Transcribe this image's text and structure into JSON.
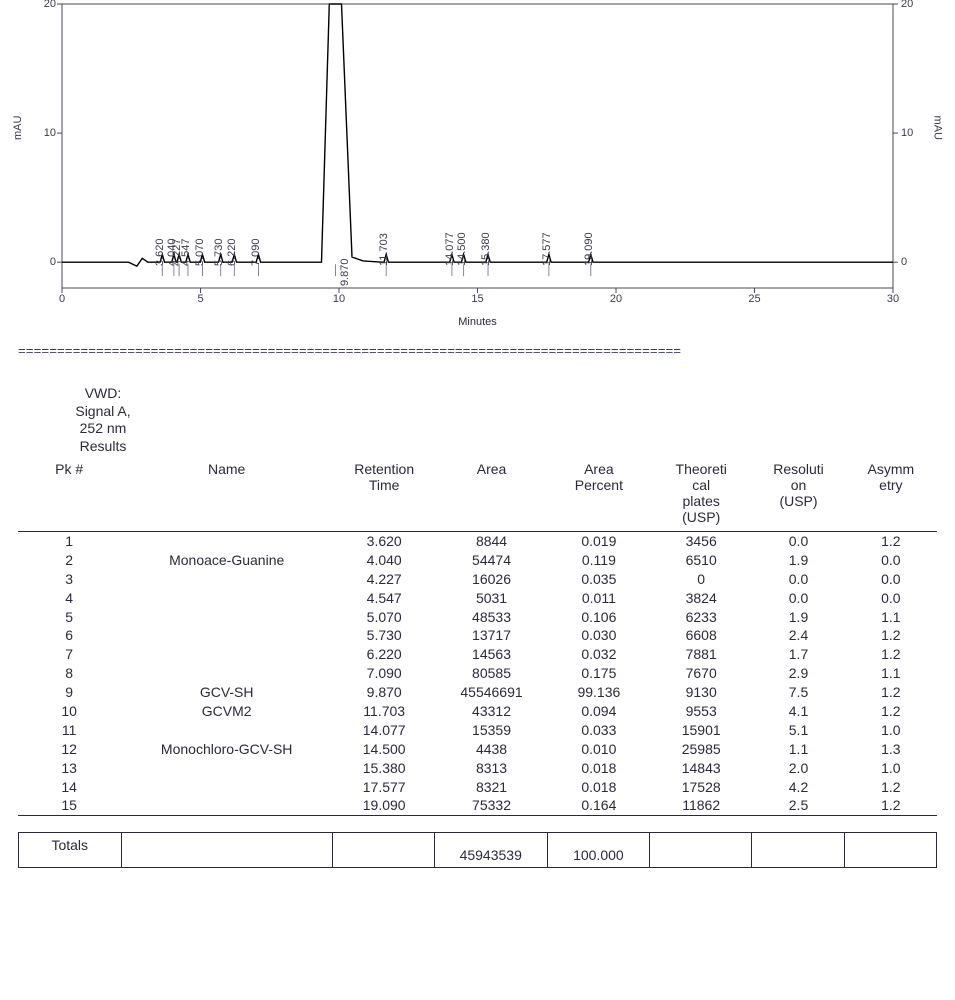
{
  "chart": {
    "type": "chromatogram-line",
    "legend": {
      "faint_line": "VWD: Signal A, 252 nm",
      "label": "Retention Time"
    },
    "x_axis": {
      "title": "Minutes",
      "min": 0,
      "max": 30,
      "ticks": [
        0,
        5,
        10,
        15,
        20,
        25,
        30
      ]
    },
    "y_axis": {
      "title_left": "mAU",
      "title_right": "mAU",
      "min": -2,
      "max": 20,
      "ticks": [
        0,
        10,
        20
      ]
    },
    "line_color": "#000000",
    "line_width": 1.4,
    "plot_border_color": "#4a4a5a",
    "background_color": "#ffffff",
    "tick_color": "#4a4a5a",
    "label_fontsize": 11,
    "baseline_y": 0,
    "main_peak": {
      "rt": 9.87,
      "clipped_top": true
    },
    "small_peaks_rt": [
      3.62,
      4.04,
      4.227,
      4.547,
      5.07,
      5.73,
      6.22,
      7.09,
      11.703,
      14.077,
      14.5,
      15.38,
      17.577,
      19.09
    ],
    "small_peak_height_mau": 0.6,
    "peak_labels": [
      "3.620",
      "4.040",
      "4.227",
      "4.547",
      "5.070",
      "5.730",
      "6.220",
      "7.090",
      "9.870",
      "11.703",
      "14.077",
      "14.500",
      "15.380",
      "17.577",
      "19.090"
    ]
  },
  "separator": "=====================================================================================",
  "results": {
    "block_title_lines": [
      "VWD:",
      "Signal A,",
      "252 nm",
      "Results"
    ],
    "columns": [
      "Pk #",
      "Name",
      "Retention Time",
      "Area",
      "Area Percent",
      "Theoretical plates (USP)",
      "Resolution (USP)",
      "Asymmetry"
    ],
    "col_header_display": {
      "pk": "Pk #",
      "name": "Name",
      "rt_l1": "Retention",
      "rt_l2": "Time",
      "area": "Area",
      "ap_l1": "Area",
      "ap_l2": "Percent",
      "tp_l1": "Theoreti",
      "tp_l2": "cal",
      "tp_l3": "plates",
      "tp_l4": "(USP)",
      "res_l1": "Resoluti",
      "res_l2": "on",
      "res_l3": "(USP)",
      "asy_l1": "Asymm",
      "asy_l2": "etry"
    },
    "rows": [
      {
        "pk": "1",
        "name": "",
        "rt": "3.620",
        "area": "8844",
        "ap": "0.019",
        "tp": "3456",
        "res": "0.0",
        "asy": "1.2"
      },
      {
        "pk": "2",
        "name": "Monoace-Guanine",
        "rt": "4.040",
        "area": "54474",
        "ap": "0.119",
        "tp": "6510",
        "res": "1.9",
        "asy": "0.0"
      },
      {
        "pk": "3",
        "name": "",
        "rt": "4.227",
        "area": "16026",
        "ap": "0.035",
        "tp": "0",
        "res": "0.0",
        "asy": "0.0"
      },
      {
        "pk": "4",
        "name": "",
        "rt": "4.547",
        "area": "5031",
        "ap": "0.011",
        "tp": "3824",
        "res": "0.0",
        "asy": "0.0"
      },
      {
        "pk": "5",
        "name": "",
        "rt": "5.070",
        "area": "48533",
        "ap": "0.106",
        "tp": "6233",
        "res": "1.9",
        "asy": "1.1"
      },
      {
        "pk": "6",
        "name": "",
        "rt": "5.730",
        "area": "13717",
        "ap": "0.030",
        "tp": "6608",
        "res": "2.4",
        "asy": "1.2"
      },
      {
        "pk": "7",
        "name": "",
        "rt": "6.220",
        "area": "14563",
        "ap": "0.032",
        "tp": "7881",
        "res": "1.7",
        "asy": "1.2"
      },
      {
        "pk": "8",
        "name": "",
        "rt": "7.090",
        "area": "80585",
        "ap": "0.175",
        "tp": "7670",
        "res": "2.9",
        "asy": "1.1"
      },
      {
        "pk": "9",
        "name": "GCV-SH",
        "rt": "9.870",
        "area": "45546691",
        "ap": "99.136",
        "tp": "9130",
        "res": "7.5",
        "asy": "1.2"
      },
      {
        "pk": "10",
        "name": "GCVM2",
        "rt": "11.703",
        "area": "43312",
        "ap": "0.094",
        "tp": "9553",
        "res": "4.1",
        "asy": "1.2"
      },
      {
        "pk": "11",
        "name": "",
        "rt": "14.077",
        "area": "15359",
        "ap": "0.033",
        "tp": "15901",
        "res": "5.1",
        "asy": "1.0"
      },
      {
        "pk": "12",
        "name": "Monochloro-GCV-SH",
        "rt": "14.500",
        "area": "4438",
        "ap": "0.010",
        "tp": "25985",
        "res": "1.1",
        "asy": "1.3"
      },
      {
        "pk": "13",
        "name": "",
        "rt": "15.380",
        "area": "8313",
        "ap": "0.018",
        "tp": "14843",
        "res": "2.0",
        "asy": "1.0"
      },
      {
        "pk": "14",
        "name": "",
        "rt": "17.577",
        "area": "8321",
        "ap": "0.018",
        "tp": "17528",
        "res": "4.2",
        "asy": "1.2"
      },
      {
        "pk": "15",
        "name": "",
        "rt": "19.090",
        "area": "75332",
        "ap": "0.164",
        "tp": "11862",
        "res": "2.5",
        "asy": "1.2"
      }
    ],
    "totals": {
      "label": "Totals",
      "area": "45943539",
      "ap": "100.000"
    }
  }
}
